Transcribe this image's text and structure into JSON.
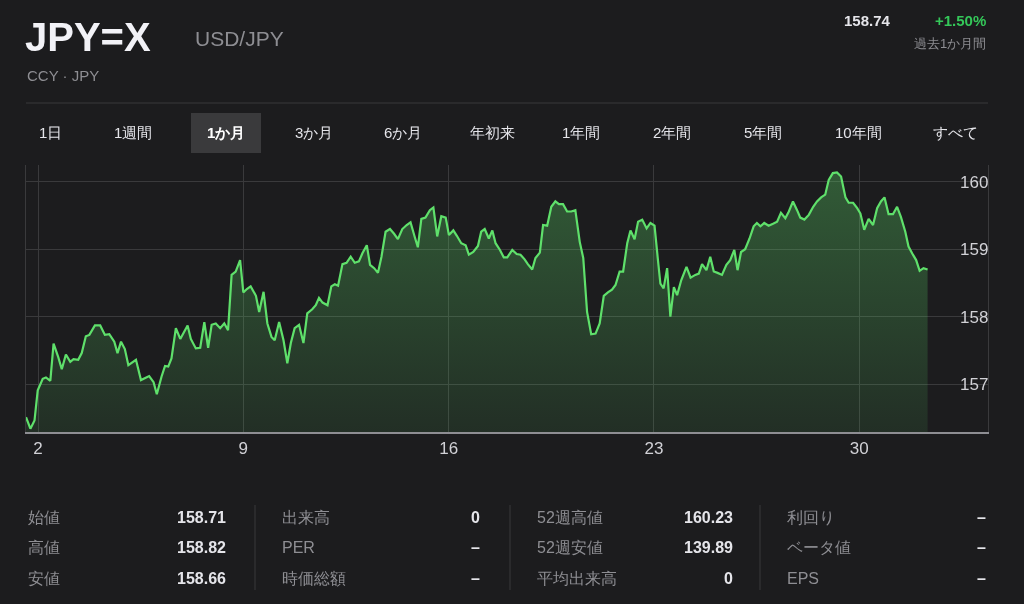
{
  "chart_data": {
    "type": "area",
    "title": "JPY=X",
    "subtitle": "USD/JPY",
    "x": [
      1.59,
      1.74,
      1.88,
      1.99,
      2.16,
      2.27,
      2.42,
      2.53,
      2.69,
      2.81,
      2.95,
      3.1,
      3.21,
      3.37,
      3.49,
      3.63,
      3.75,
      3.94,
      4.12,
      4.28,
      4.43,
      4.6,
      4.71,
      4.83,
      4.96,
      5.08,
      5.34,
      5.51,
      5.79,
      5.94,
      6.05,
      6.21,
      6.33,
      6.44,
      6.55,
      6.7,
      6.85,
      7.1,
      7.21,
      7.38,
      7.53,
      7.67,
      7.8,
      7.92,
      8.06,
      8.21,
      8.35,
      8.48,
      8.6,
      8.74,
      8.89,
      9.0,
      9.12,
      9.25,
      9.43,
      9.54,
      9.69,
      9.82,
      9.96,
      10.07,
      10.22,
      10.37,
      10.5,
      10.62,
      10.75,
      10.9,
      11.05,
      11.18,
      11.35,
      11.47,
      11.58,
      11.7,
      11.87,
      12.0,
      12.12,
      12.23,
      12.38,
      12.52,
      12.66,
      12.8,
      12.94,
      13.06,
      13.21,
      13.32,
      13.46,
      13.59,
      13.71,
      13.85,
      14.0,
      14.14,
      14.27,
      14.42,
      14.57,
      14.7,
      14.84,
      14.95,
      15.07,
      15.21,
      15.36,
      15.48,
      15.61,
      15.75,
      15.9,
      16.01,
      16.16,
      16.28,
      16.43,
      16.58,
      16.69,
      16.84,
      17.0,
      17.11,
      17.23,
      17.37,
      17.49,
      17.6,
      17.75,
      17.88,
      18.0,
      18.17,
      18.32,
      18.45,
      18.59,
      18.7,
      18.85,
      18.96,
      19.11,
      19.22,
      19.36,
      19.5,
      19.64,
      19.76,
      19.9,
      20.04,
      20.18,
      20.32,
      20.47,
      20.59,
      20.72,
      20.86,
      21.01,
      21.15,
      21.29,
      21.43,
      21.57,
      21.69,
      21.83,
      21.95,
      22.09,
      22.2,
      22.34,
      22.46,
      22.6,
      22.75,
      22.88,
      23.02,
      23.13,
      23.22,
      23.33,
      23.45,
      23.56,
      23.68,
      23.79,
      23.93,
      24.11,
      24.25,
      24.41,
      24.53,
      24.64,
      24.79,
      24.92,
      25.04,
      25.17,
      25.32,
      25.47,
      25.6,
      25.74,
      25.85,
      25.97,
      26.11,
      26.26,
      26.4,
      26.51,
      26.63,
      26.76,
      26.91,
      27.06,
      27.2,
      27.33,
      27.48,
      27.6,
      27.74,
      27.88,
      27.99,
      28.13,
      28.28,
      28.43,
      28.56,
      28.7,
      28.84,
      28.96,
      29.1,
      29.24,
      29.38,
      29.53,
      29.64,
      29.79,
      29.93,
      30.04,
      30.17,
      30.32,
      30.47,
      30.61,
      30.74,
      30.86,
      31.0,
      31.15,
      31.29,
      31.42,
      31.57,
      31.68,
      31.83,
      31.94,
      32.06,
      32.19,
      32.33
    ],
    "series": [
      {
        "color": "#5fe06b",
        "values": [
          156.51,
          156.34,
          156.46,
          156.91,
          157.08,
          157.1,
          157.05,
          157.6,
          157.4,
          157.22,
          157.44,
          157.33,
          157.37,
          157.36,
          157.46,
          157.71,
          157.73,
          157.87,
          157.87,
          157.73,
          157.74,
          157.63,
          157.46,
          157.63,
          157.52,
          157.28,
          157.36,
          157.06,
          157.12,
          157.03,
          156.85,
          157.11,
          157.27,
          157.26,
          157.38,
          157.83,
          157.67,
          157.87,
          157.67,
          157.53,
          157.54,
          157.92,
          157.54,
          157.88,
          157.9,
          157.83,
          157.9,
          157.8,
          158.62,
          158.67,
          158.84,
          158.36,
          158.41,
          158.45,
          158.31,
          158.07,
          158.37,
          157.9,
          157.7,
          157.65,
          157.92,
          157.65,
          157.31,
          157.61,
          157.83,
          157.88,
          157.61,
          158.05,
          158.11,
          158.17,
          158.28,
          158.21,
          158.17,
          158.45,
          158.48,
          158.46,
          158.78,
          158.8,
          158.89,
          158.8,
          158.82,
          158.94,
          159.06,
          158.77,
          158.72,
          158.65,
          158.89,
          159.26,
          159.3,
          159.23,
          159.15,
          159.3,
          159.36,
          159.4,
          159.19,
          159.03,
          159.45,
          159.47,
          159.58,
          159.62,
          159.19,
          159.49,
          159.47,
          159.21,
          159.28,
          159.2,
          159.09,
          159.06,
          158.92,
          158.96,
          159.05,
          159.26,
          159.3,
          159.16,
          159.28,
          159.09,
          158.99,
          158.88,
          158.88,
          158.99,
          158.93,
          158.92,
          158.85,
          158.78,
          158.7,
          158.87,
          158.95,
          159.36,
          159.35,
          159.63,
          159.71,
          159.67,
          159.67,
          159.56,
          159.56,
          159.58,
          159.11,
          158.87,
          158.07,
          157.74,
          157.75,
          157.9,
          158.31,
          158.36,
          158.4,
          158.47,
          158.67,
          158.67,
          159.09,
          159.28,
          159.15,
          159.41,
          159.44,
          159.31,
          159.39,
          159.35,
          158.87,
          158.49,
          158.42,
          158.72,
          158.0,
          158.44,
          158.32,
          158.54,
          158.74,
          158.58,
          158.62,
          158.64,
          158.78,
          158.69,
          158.89,
          158.67,
          158.65,
          158.62,
          158.77,
          158.84,
          158.99,
          158.69,
          158.96,
          159.0,
          159.16,
          159.34,
          159.39,
          159.34,
          159.39,
          159.35,
          159.38,
          159.41,
          159.54,
          159.46,
          159.56,
          159.71,
          159.58,
          159.47,
          159.44,
          159.51,
          159.63,
          159.71,
          159.77,
          159.81,
          160.03,
          160.13,
          160.14,
          160.08,
          159.77,
          159.69,
          159.69,
          159.61,
          159.53,
          159.29,
          159.45,
          159.36,
          159.61,
          159.71,
          159.77,
          159.52,
          159.52,
          159.63,
          159.48,
          159.26,
          159.04,
          158.92,
          158.84,
          158.68,
          158.72,
          158.7
        ]
      }
    ],
    "xlim": [
      1.59,
      34.39
    ],
    "xticks": [
      2,
      9,
      16,
      23,
      30
    ],
    "ylim": [
      156.29,
      160.25
    ],
    "yticks": [
      157,
      158,
      159,
      160
    ],
    "grid": true,
    "marker": "none",
    "line_style": "solid",
    "annotations": [
      "CCY · JPY",
      "158.74",
      "+1.50%",
      "過去1か月間",
      "1日",
      "1週間",
      "1か月",
      "3か月",
      "6か月",
      "年初来",
      "1年間",
      "2年間",
      "5年間",
      "10年間",
      "すべて",
      "始値",
      "158.71",
      "高値",
      "158.82",
      "安値",
      "158.66",
      "出来高",
      "0",
      "PER",
      "–",
      "時価総額",
      "–",
      "52週高値",
      "160.23",
      "52週安値",
      "139.89",
      "平均出来高",
      "0",
      "利回り",
      "–",
      "ベータ値",
      "–",
      "EPS",
      "–"
    ]
  }
}
